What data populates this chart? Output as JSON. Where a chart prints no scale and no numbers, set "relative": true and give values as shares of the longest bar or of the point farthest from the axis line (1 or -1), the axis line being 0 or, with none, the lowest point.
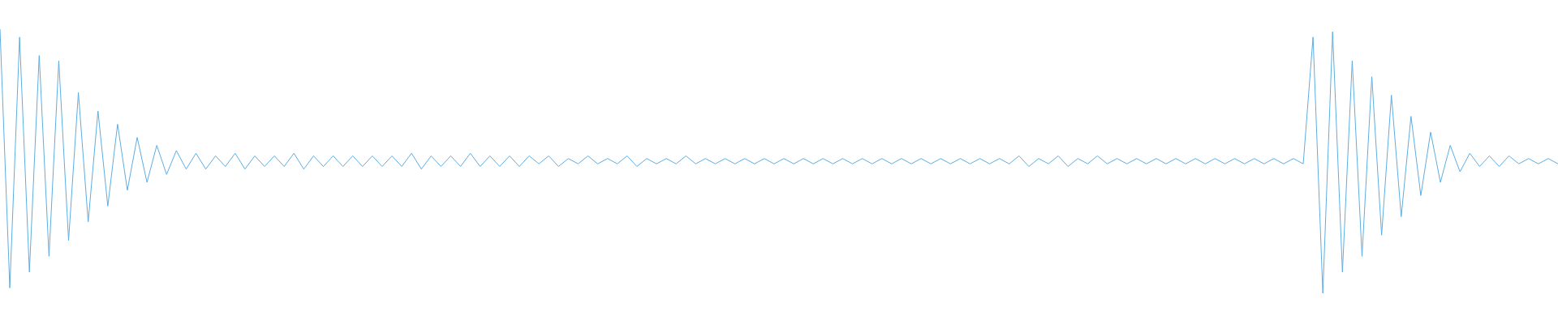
{
  "chart_data": {
    "type": "line",
    "relative": true,
    "categories": [
      null,
      null,
      null,
      null,
      null,
      null,
      null,
      null,
      null,
      null,
      null,
      null,
      null,
      null,
      null,
      null,
      null,
      null,
      null,
      null,
      null,
      null,
      null,
      null,
      null,
      null,
      null,
      null,
      null,
      null,
      null,
      null,
      null,
      null,
      null,
      null,
      null,
      null,
      null,
      null,
      null,
      null,
      null,
      null,
      null,
      null,
      null,
      null,
      null,
      null,
      null,
      null,
      null,
      null,
      null,
      null,
      null,
      null,
      null,
      null,
      null,
      null,
      null,
      null,
      null,
      null,
      null,
      null,
      null,
      null,
      null,
      null,
      null,
      null,
      null,
      null,
      null,
      null,
      null,
      null,
      null,
      null,
      null,
      null,
      null,
      null,
      null,
      null,
      null,
      null,
      null,
      null,
      null,
      null,
      null,
      null,
      null,
      null,
      null,
      null,
      null,
      null,
      null,
      null,
      null,
      null,
      null,
      null,
      null,
      null,
      null,
      null,
      null,
      null,
      null,
      null,
      null,
      null,
      null,
      null,
      null,
      null,
      null,
      null,
      null,
      null,
      null,
      null,
      null,
      null,
      null,
      null,
      null,
      null,
      null,
      null,
      null,
      null,
      null,
      null,
      null,
      null,
      null,
      null,
      null,
      null,
      null,
      null,
      null,
      null,
      null,
      null,
      null,
      null,
      null,
      null,
      null,
      null,
      null,
      null
    ],
    "series": [
      {
        "color": "#5dade2",
        "values": [
          1.0,
          0.02,
          0.97,
          0.08,
          0.9,
          0.14,
          0.88,
          0.2,
          0.76,
          0.27,
          0.69,
          0.33,
          0.64,
          0.39,
          0.59,
          0.42,
          0.56,
          0.45,
          0.54,
          0.47,
          0.53,
          0.47,
          0.52,
          0.48,
          0.53,
          0.47,
          0.52,
          0.48,
          0.52,
          0.48,
          0.53,
          0.47,
          0.52,
          0.48,
          0.52,
          0.48,
          0.52,
          0.48,
          0.52,
          0.48,
          0.52,
          0.48,
          0.53,
          0.47,
          0.52,
          0.48,
          0.52,
          0.48,
          0.53,
          0.48,
          0.52,
          0.48,
          0.52,
          0.48,
          0.52,
          0.49,
          0.52,
          0.48,
          0.51,
          0.49,
          0.52,
          0.49,
          0.51,
          0.49,
          0.52,
          0.48,
          0.51,
          0.49,
          0.51,
          0.49,
          0.52,
          0.49,
          0.51,
          0.49,
          0.51,
          0.49,
          0.51,
          0.49,
          0.51,
          0.49,
          0.51,
          0.49,
          0.51,
          0.49,
          0.51,
          0.49,
          0.51,
          0.49,
          0.51,
          0.49,
          0.51,
          0.49,
          0.51,
          0.49,
          0.51,
          0.49,
          0.51,
          0.49,
          0.51,
          0.49,
          0.51,
          0.49,
          0.51,
          0.49,
          0.52,
          0.48,
          0.51,
          0.49,
          0.52,
          0.48,
          0.51,
          0.49,
          0.52,
          0.49,
          0.51,
          0.49,
          0.51,
          0.49,
          0.51,
          0.49,
          0.51,
          0.49,
          0.51,
          0.49,
          0.51,
          0.49,
          0.51,
          0.49,
          0.51,
          0.49,
          0.51,
          0.49,
          0.51,
          0.49,
          0.97,
          0.0,
          0.99,
          0.08,
          0.88,
          0.14,
          0.82,
          0.22,
          0.75,
          0.29,
          0.67,
          0.37,
          0.61,
          0.42,
          0.56,
          0.46,
          0.53,
          0.48,
          0.52,
          0.48,
          0.52,
          0.49,
          0.51,
          0.49,
          0.51,
          0.49
        ]
      }
    ]
  }
}
